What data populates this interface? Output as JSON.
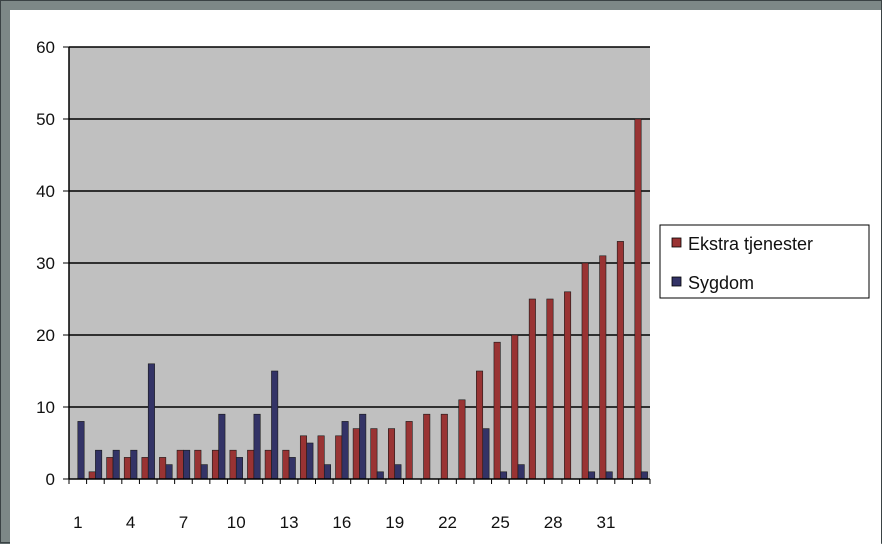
{
  "chart_data": {
    "type": "bar",
    "x": [
      1,
      2,
      3,
      4,
      5,
      6,
      7,
      8,
      9,
      10,
      11,
      12,
      13,
      14,
      15,
      16,
      17,
      18,
      19,
      20,
      21,
      22,
      23,
      24,
      25,
      26,
      27,
      28,
      29,
      30,
      31,
      32,
      33
    ],
    "x_tick_labels": [
      "1",
      "4",
      "7",
      "10",
      "13",
      "16",
      "19",
      "22",
      "25",
      "28",
      "31"
    ],
    "ylim": [
      0,
      60
    ],
    "y_ticks": [
      0,
      10,
      20,
      30,
      40,
      50,
      60
    ],
    "grid": true,
    "plot_background": "#c0c0c0",
    "legend_position": "right",
    "series": [
      {
        "name": "Ekstra tjenester",
        "color": "#993333",
        "values": [
          0,
          1,
          3,
          3,
          3,
          3,
          4,
          4,
          4,
          4,
          4,
          4,
          4,
          6,
          6,
          6,
          7,
          7,
          7,
          8,
          9,
          9,
          11,
          15,
          19,
          20,
          25,
          25,
          26,
          30,
          31,
          33,
          50
        ]
      },
      {
        "name": "Sygdom",
        "color": "#333366",
        "values": [
          8,
          4,
          4,
          4,
          16,
          2,
          4,
          2,
          9,
          3,
          9,
          15,
          3,
          5,
          2,
          8,
          9,
          1,
          2,
          0,
          0,
          0,
          0,
          7,
          1,
          2,
          0,
          0,
          0,
          1,
          1,
          0,
          1
        ]
      }
    ]
  }
}
